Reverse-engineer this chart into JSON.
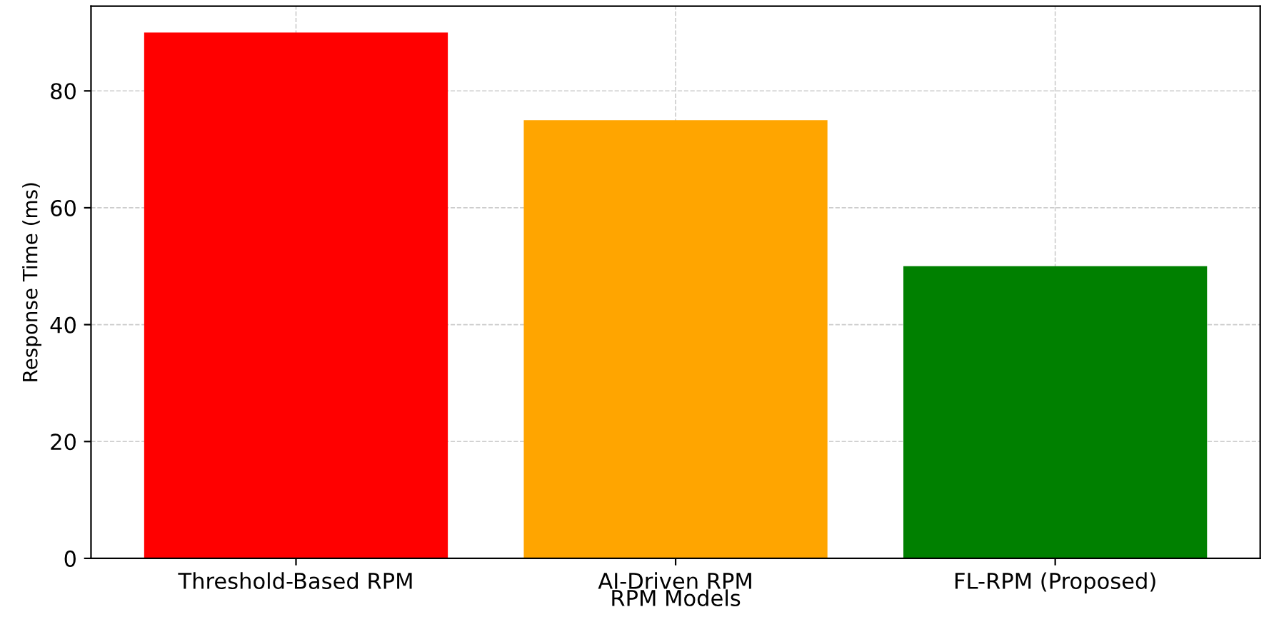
{
  "chart_data": {
    "type": "bar",
    "xlabel": "RPM Models",
    "ylabel": "Response Time (ms)",
    "categories": [
      "Threshold-Based RPM",
      "AI-Driven RPM",
      "FL-RPM (Proposed)"
    ],
    "values": [
      90,
      75,
      50
    ],
    "colors": [
      "#ff0000",
      "#ffa500",
      "#008000"
    ],
    "ylim": [
      0,
      94.5
    ],
    "yticks": [
      0,
      20,
      40,
      60,
      80
    ],
    "grid": true
  }
}
